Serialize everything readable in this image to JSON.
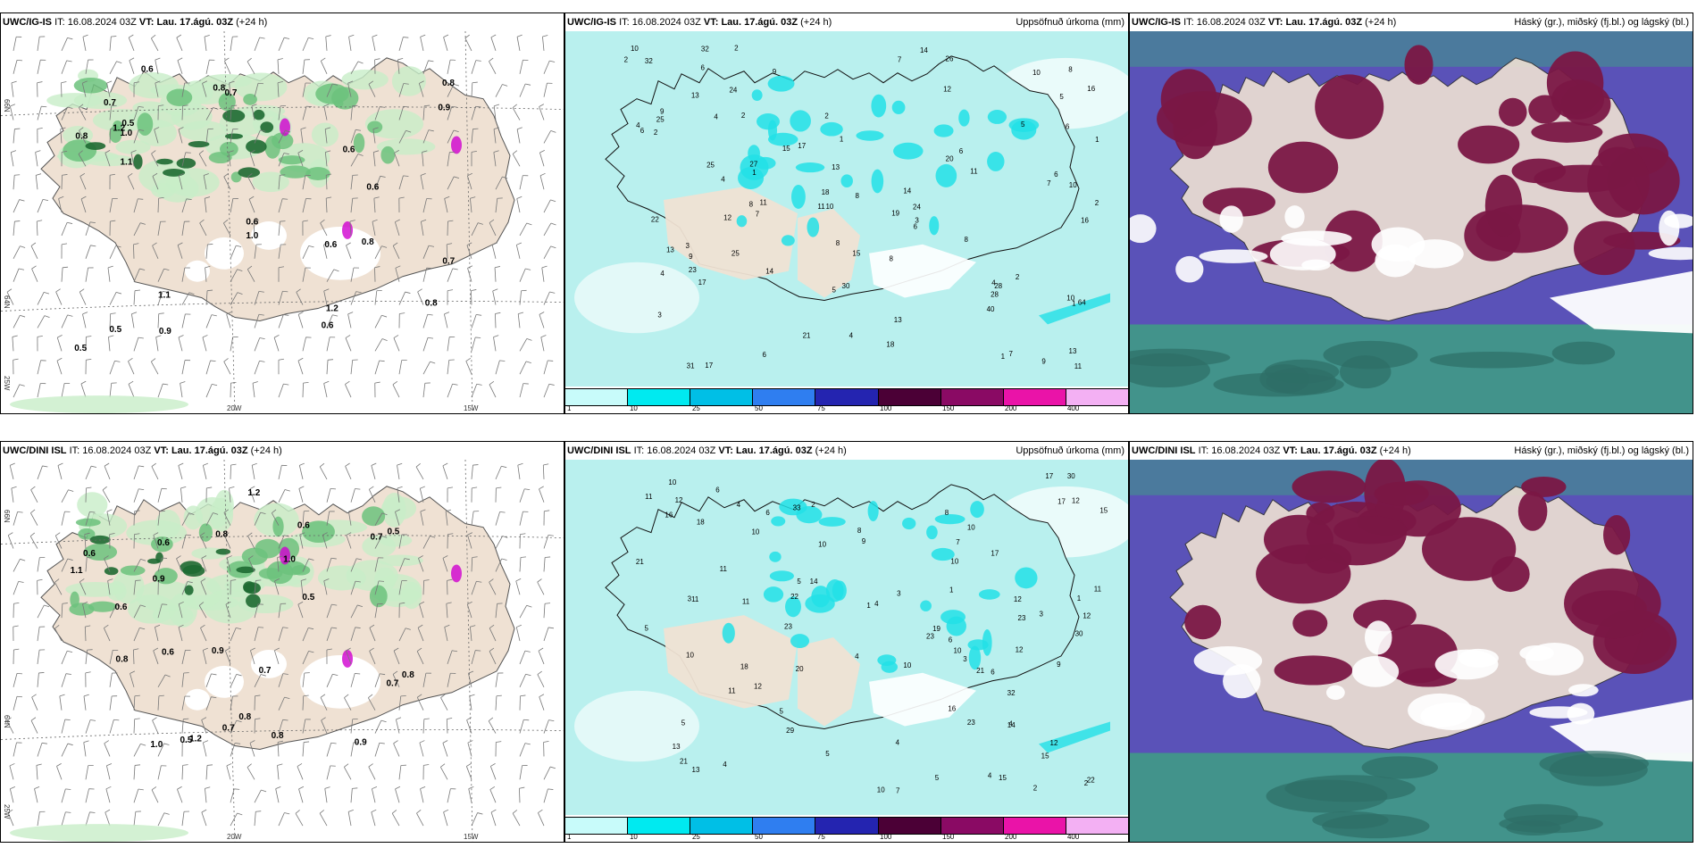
{
  "colors": {
    "land": "#efe1d3",
    "sea_panel1": "#ffffff",
    "precip_light": "#b9f0ee",
    "precip_cyan": "#22e0e6",
    "green_light": "#c8eec8",
    "green_mid": "#6cc27c",
    "green_dark": "#1e6a32",
    "purple_cloud": "#5a52b8",
    "maroon_cloud": "#7a1744",
    "teal_cloud": "#3f9a86",
    "magenta": "#d000d0"
  },
  "scale": {
    "colors": [
      "#c8fbfa",
      "#00eaf0",
      "#00bfe6",
      "#2f7ef0",
      "#2424b0",
      "#4b0036",
      "#8a0a64",
      "#ea13a8",
      "#f3b0f3"
    ],
    "labels": [
      "1",
      "10",
      "25",
      "50",
      "75",
      "100",
      "150",
      "200",
      "400"
    ]
  },
  "rows": [
    {
      "panel1": {
        "model": "UWC/IG-IS",
        "it_label": "IT:",
        "it_value": "16.08.2024 03Z",
        "vt_label": "VT:",
        "vt_value": "Lau. 17.ágú. 03Z",
        "lead_a": "(+24",
        "lead_b": "h)"
      },
      "panel2": {
        "model": "UWC/IG-IS",
        "it_label": "IT:",
        "it_value": "16.08.2024 03Z",
        "vt_label": "VT:",
        "vt_value": "Lau. 17.ágú. 03Z",
        "lead": "(+24 h)",
        "right": "Uppsöfnuð úrkoma (mm)"
      },
      "panel3": {
        "model": "UWC/IG-IS",
        "it_label": "IT:",
        "it_value": "16.08.2024 03Z",
        "vt_label": "VT:",
        "vt_value": "Lau. 17.ágú. 03Z",
        "lead": "(+24 h)",
        "right": "Háský (gr.), miðský (fj.bl.) og lágský (bl.)"
      },
      "axes": {
        "lat_top": "66N",
        "lat_mid": "64N",
        "lon_left": "25W",
        "lon_mid": "20W",
        "lon_right": "15W"
      },
      "precip_values": [
        "2",
        "6",
        "8",
        "1",
        "7",
        "2",
        "10",
        "5",
        "10",
        "4",
        "32",
        "40",
        "64",
        "28",
        "8",
        "6",
        "25",
        "32",
        "30",
        "17",
        "9",
        "2",
        "5",
        "27",
        "20",
        "26",
        "14",
        "21",
        "31",
        "15",
        "15",
        "23",
        "22",
        "13",
        "11",
        "17",
        "3",
        "14",
        "12",
        "16",
        "16",
        "18",
        "13",
        "8",
        "10",
        "6",
        "11",
        "25",
        "13",
        "17",
        "4",
        "9",
        "11",
        "18",
        "7",
        "7",
        "8",
        "2",
        "2",
        "11",
        "24",
        "14",
        "24",
        "28",
        "12",
        "6",
        "4",
        "5",
        "3",
        "13",
        "13",
        "1",
        "1",
        "2",
        "2",
        "8",
        "9",
        "8",
        "4",
        "10",
        "6",
        "19",
        "25",
        "4",
        "9",
        "3",
        "6",
        "6",
        "1",
        "1",
        "4",
        "7",
        "10"
      ],
      "gust_values": [
        "0.9",
        "1.1",
        "0.8",
        "0.7",
        "0.6",
        "0.8",
        "0.6",
        "0.5",
        "1.0",
        "0.8",
        "0.7",
        "0.6",
        "1.2",
        "0.6",
        "0.8",
        "0.8",
        "0.6",
        "1.0",
        "0.5",
        "0.5",
        "0.7",
        "1.2",
        "0.9",
        "1.1",
        "0.6"
      ]
    },
    {
      "panel1": {
        "model": "UWC/DINI ISL",
        "it_label": "IT:",
        "it_value": "16.08.2024 03Z",
        "vt_label": "VT:",
        "vt_value": "Lau. 17.ágú. 03Z",
        "lead_a": "(+24 h)",
        "lead_b": ""
      },
      "panel2": {
        "model": "UWC/DINI ISL",
        "it_label": "IT:",
        "it_value": "16.08.2024 03Z",
        "vt_label": "VT:",
        "vt_value": "Lau. 17.ágú. 03Z",
        "lead": "(+24 h)",
        "right": "Uppsöfnuð úrkoma (mm)"
      },
      "panel3": {
        "model": "UWC/DINI ISL",
        "it_label": "IT:",
        "it_value": "16.08.2024 03Z",
        "vt_label": "VT:",
        "vt_value": "Lau. 17.ágú. 03Z",
        "lead": "(+24 h)",
        "right": "Háský (gr.), miðský (fj.bl.) og lágský (bl.)"
      },
      "axes": {
        "lat_top": "66N",
        "lat_mid": "64N",
        "lon_left": "25W",
        "lon_mid": "20W",
        "lon_right": "15W"
      },
      "precip_values": [
        "4",
        "1",
        "3",
        "2",
        "16",
        "3",
        "13",
        "4",
        "6",
        "22",
        "29",
        "32",
        "33",
        "22",
        "19",
        "16",
        "23",
        "12",
        "21",
        "30",
        "15",
        "15",
        "18",
        "21",
        "18",
        "11",
        "17",
        "12",
        "23",
        "11",
        "10",
        "10",
        "12",
        "12",
        "10",
        "10",
        "20",
        "17",
        "11",
        "5",
        "12",
        "30",
        "23",
        "14",
        "6",
        "4",
        "12",
        "17",
        "21",
        "10",
        "15",
        "14",
        "5",
        "5",
        "4",
        "4",
        "4",
        "3",
        "9",
        "2",
        "10",
        "5",
        "8",
        "10",
        "11",
        "13",
        "23",
        "12",
        "5",
        "9",
        "6",
        "7",
        "8",
        "4",
        "11",
        "10",
        "3",
        "2",
        "7",
        "6",
        "1",
        "11",
        "10",
        "5",
        "1"
      ],
      "gust_values": [
        "0.6",
        "1.2",
        "0.9",
        "0.8",
        "0.7",
        "0.6",
        "0.7",
        "0.9",
        "1.0",
        "0.8",
        "0.7",
        "0.8",
        "0.6",
        "1.0",
        "0.5",
        "0.7",
        "0.6",
        "0.5",
        "0.8",
        "1.2",
        "0.6",
        "0.9",
        "0.5",
        "0.8",
        "1.1"
      ]
    }
  ]
}
